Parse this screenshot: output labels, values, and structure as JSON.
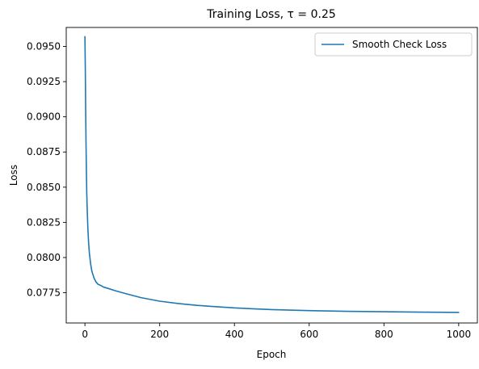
{
  "chart_data": {
    "type": "line",
    "title": "Training Loss, τ = 0.25",
    "xlabel": "Epoch",
    "ylabel": "Loss",
    "xlim": [
      -50,
      1050
    ],
    "ylim": [
      0.07535,
      0.09635
    ],
    "xticks": [
      0,
      200,
      400,
      600,
      800,
      1000
    ],
    "xtick_labels": [
      "0",
      "200",
      "400",
      "600",
      "800",
      "1000"
    ],
    "yticks": [
      0.0775,
      0.08,
      0.0825,
      0.085,
      0.0875,
      0.09,
      0.0925,
      0.095
    ],
    "ytick_labels": [
      "0.0775",
      "0.0800",
      "0.0825",
      "0.0850",
      "0.0875",
      "0.0900",
      "0.0925",
      "0.0950"
    ],
    "grid": false,
    "legend": {
      "placement": "upper-right"
    },
    "series": [
      {
        "name": "Smooth Check Loss",
        "color": "#1f77b4",
        "x": [
          0,
          1,
          2,
          3,
          4,
          5,
          6,
          8,
          10,
          12,
          15,
          18,
          20,
          25,
          30,
          35,
          40,
          50,
          60,
          80,
          100,
          150,
          200,
          250,
          300,
          350,
          400,
          450,
          500,
          600,
          700,
          800,
          900,
          1000
        ],
        "y": [
          0.0957,
          0.0935,
          0.0905,
          0.088,
          0.086,
          0.0845,
          0.0835,
          0.082,
          0.081,
          0.0803,
          0.0796,
          0.0791,
          0.0789,
          0.0785,
          0.07825,
          0.0781,
          0.07805,
          0.0779,
          0.07782,
          0.07765,
          0.0775,
          0.07715,
          0.0769,
          0.07673,
          0.0766,
          0.07651,
          0.07642,
          0.07636,
          0.0763,
          0.07623,
          0.07618,
          0.07615,
          0.07612,
          0.0761
        ]
      }
    ]
  }
}
